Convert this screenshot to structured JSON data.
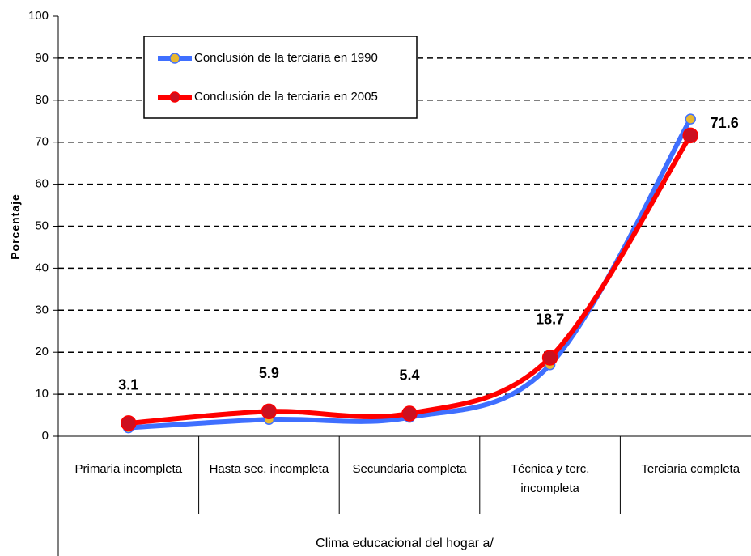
{
  "chart_data": {
    "type": "line",
    "x_label": "Clima educacional del hogar a/",
    "y_label": "Porcentaje",
    "categories": [
      "Primaria incompleta",
      "Hasta sec. incompleta",
      "Secundaria completa",
      "Técnica y terc. incompleta",
      "Terciaria completa"
    ],
    "series": [
      {
        "name": "Conclusión de la terciaria en 1990",
        "color": "#3f6fff",
        "marker_color": "#e8b830",
        "values": [
          2,
          4,
          4.5,
          17,
          75.5
        ]
      },
      {
        "name": "Conclusión de la terciaria en 2005",
        "color": "#ff0000",
        "marker_color": "#cc1020",
        "values": [
          3.1,
          5.9,
          5.4,
          18.7,
          71.6
        ],
        "show_labels": true
      }
    ],
    "ylim": [
      0,
      100
    ],
    "yticks": [
      0,
      10,
      20,
      30,
      40,
      50,
      60,
      70,
      80,
      90,
      100
    ],
    "grid": true,
    "legend": "upper left"
  }
}
